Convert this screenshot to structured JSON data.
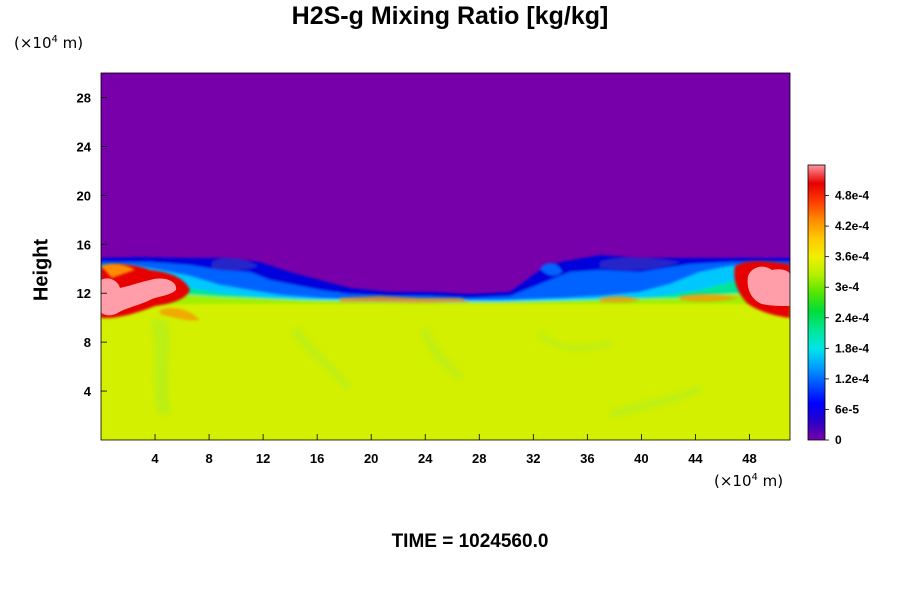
{
  "chart_data": {
    "type": "heatmap",
    "title": "H2S-g Mixing Ratio [kg/kg]",
    "xlabel": "",
    "ylabel": "Height",
    "x_unit": "(×10^4 m)",
    "y_unit": "(×10^4 m)",
    "xlim": [
      0,
      51
    ],
    "ylim": [
      0,
      30
    ],
    "x_ticks": [
      4,
      8,
      12,
      16,
      20,
      24,
      28,
      32,
      36,
      40,
      44,
      48
    ],
    "y_ticks": [
      4,
      8,
      12,
      16,
      20,
      24,
      28
    ],
    "colorbar": {
      "range": [
        0,
        0.00054
      ],
      "tick_labels": [
        "0",
        "6e-5",
        "1.2e-4",
        "1.8e-4",
        "2.4e-4",
        "3e-4",
        "3.6e-4",
        "4.2e-4",
        "4.8e-4"
      ],
      "tick_values": [
        0,
        6e-05,
        0.00012,
        0.00018,
        0.00024,
        0.0003,
        0.00036,
        0.00042,
        0.00048
      ],
      "colors": [
        "#7800aa",
        "#2800c8",
        "#0000ff",
        "#0050ff",
        "#00a0ff",
        "#00e6e6",
        "#00e696",
        "#00dc3c",
        "#50e600",
        "#b4f000",
        "#f0f000",
        "#ffc800",
        "#ff8c00",
        "#ff3c00",
        "#e60000",
        "#ff96a0"
      ]
    },
    "field_description": {
      "background_upper": 0,
      "lower_layer_value": 0.00034,
      "interface_height_approx": [
        10.5,
        15
      ],
      "high_patches_at_x": [
        2,
        4,
        49
      ]
    }
  },
  "time_label": "TIME = 1024560.0",
  "unit_label_y": "(×10",
  "unit_label_x": "(×10",
  "unit_exp": "4",
  "unit_tail": " m)"
}
